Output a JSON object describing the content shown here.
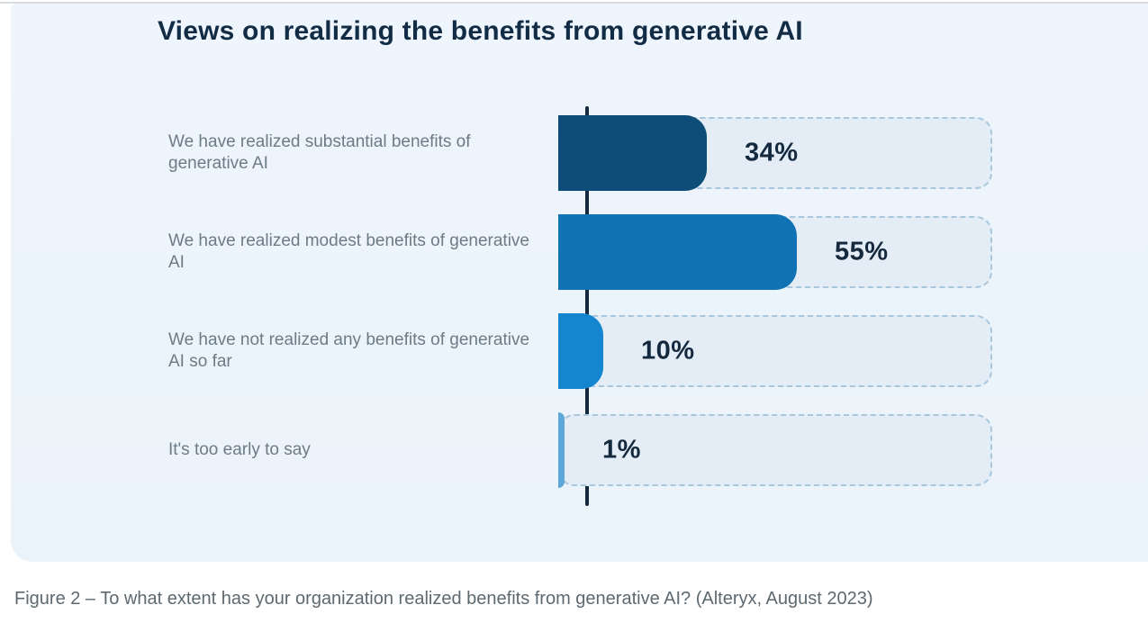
{
  "chart": {
    "title": "Views on realizing the benefits from generative AI"
  },
  "chart_data": {
    "type": "bar",
    "orientation": "horizontal",
    "title": "Views on realizing the benefits from generative AI",
    "categories": [
      "We have realized substantial benefits of generative AI",
      "We have realized modest benefits of generative AI",
      "We have not realized any benefits of generative AI so far",
      "It's too early to say"
    ],
    "values": [
      34,
      55,
      10,
      1
    ],
    "value_labels": [
      "34%",
      "55%",
      "10%",
      "1%"
    ],
    "xlim": [
      0,
      100
    ],
    "grid": false,
    "legend": "none",
    "bar_colors": [
      "#0e4d78",
      "#1173b4",
      "#1486cf",
      "#5fa7d9"
    ],
    "track_fill_color": "#e4edf6",
    "track_border_color": "#a9c6dd",
    "axis_color": "#14293e",
    "title_color": "#132c45",
    "label_color": "#6d7b87",
    "value_color": "#14293e"
  },
  "caption": "Figure 2 – To what extent has your organization realized benefits from generative AI? (Alteryx, August 2023)"
}
